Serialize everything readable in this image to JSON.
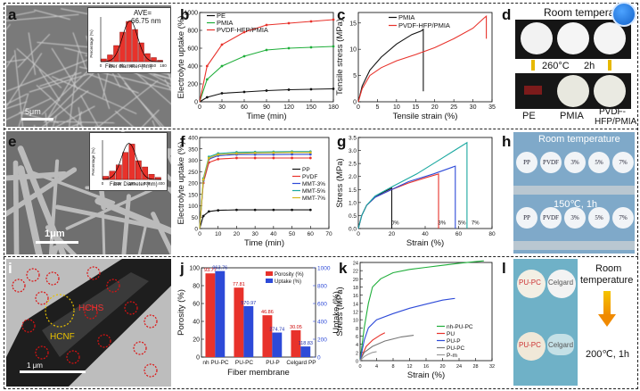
{
  "panels": {
    "a": {
      "label": "a",
      "scale": "5μm",
      "inset": {
        "ave": "AVE=",
        "ave_val": "66.75 nm",
        "ylabel": "Percentage (%)",
        "xlabel": "Fiber diameter (nm)",
        "ticks": [
          "0",
          "30",
          "60",
          "90",
          "120",
          "150",
          "180"
        ]
      }
    },
    "b": {
      "label": "b"
    },
    "c": {
      "label": "c"
    },
    "d": {
      "label": "d",
      "title": "Room temperature",
      "temp": "260°C",
      "time": "2h",
      "labels": [
        "PE",
        "PMIA",
        "PVDF-",
        "HFP/PMIA"
      ]
    },
    "e": {
      "label": "e",
      "scale": "1μm",
      "inset": {
        "ylabel": "Percentage (%)",
        "xlabel": "Fiber Diameter (nm)",
        "ticks": [
          "0",
          "100",
          "200",
          "300",
          "400"
        ]
      }
    },
    "f": {
      "label": "f"
    },
    "g": {
      "label": "g",
      "markers": [
        "0%",
        "3%",
        "5%",
        "7%"
      ]
    },
    "h": {
      "label": "h",
      "title": "Room temperature",
      "temp": "150℃, 1h",
      "discs": [
        "PP",
        "PVDF",
        "3%",
        "5%",
        "7%"
      ]
    },
    "i": {
      "label": "i",
      "scale": "1 μm",
      "tags": [
        "HCHS",
        "HCNF"
      ]
    },
    "j": {
      "label": "j"
    },
    "k": {
      "label": "k"
    },
    "l": {
      "label": "l",
      "discs": [
        "PU-PC",
        "Celgard"
      ],
      "title1": "Room",
      "title2": "temperature",
      "temp": "200℃, 1h"
    }
  },
  "chart_data": [
    {
      "panel": "b",
      "type": "line",
      "xlabel": "Time (min)",
      "ylabel": "Electrolyte uptake (%)",
      "xlim": [
        0,
        180
      ],
      "ylim": [
        0,
        1000
      ],
      "xticks": [
        0,
        30,
        60,
        90,
        120,
        150,
        180
      ],
      "yticks": [
        0,
        200,
        400,
        600,
        800,
        1000
      ],
      "legend": "top-left",
      "series": [
        {
          "name": "PE",
          "color": "#111111",
          "x": [
            0,
            10,
            30,
            60,
            90,
            120,
            150,
            180
          ],
          "y": [
            0,
            50,
            95,
            110,
            125,
            135,
            140,
            145
          ]
        },
        {
          "name": "PMIA",
          "color": "#1fae3a",
          "x": [
            0,
            10,
            30,
            60,
            90,
            120,
            150,
            180
          ],
          "y": [
            0,
            250,
            400,
            510,
            580,
            600,
            610,
            620
          ]
        },
        {
          "name": "PVDF-HFP/PMIA",
          "color": "#e8322b",
          "x": [
            0,
            10,
            30,
            60,
            90,
            120,
            150,
            180
          ],
          "y": [
            0,
            400,
            640,
            780,
            860,
            880,
            900,
            920
          ]
        }
      ]
    },
    {
      "panel": "c",
      "type": "line",
      "xlabel": "Tensile strain (%)",
      "ylabel": "Tensile stress (MPa)",
      "xlim": [
        0,
        35
      ],
      "ylim": [
        0,
        17
      ],
      "xticks": [
        0,
        5,
        10,
        15,
        20,
        25,
        30,
        35
      ],
      "yticks": [
        0,
        5,
        10,
        15
      ],
      "legend": "top-left",
      "series": [
        {
          "name": "PMIA",
          "color": "#111111",
          "x": [
            0,
            1,
            3,
            6,
            10,
            14,
            16.5,
            17,
            17
          ],
          "y": [
            0,
            3,
            6,
            8.5,
            11,
            12.8,
            13.5,
            13.8,
            2
          ]
        },
        {
          "name": "PVDF-HFP/PMIA",
          "color": "#e8322b",
          "x": [
            0,
            1,
            3,
            6,
            10,
            15,
            20,
            25,
            30,
            33,
            33.5,
            33.5
          ],
          "y": [
            0,
            2.5,
            5,
            6.5,
            7.8,
            9,
            10.3,
            12,
            14,
            16,
            16.3,
            12
          ]
        }
      ]
    },
    {
      "panel": "f",
      "type": "line",
      "xlabel": "Time (min)",
      "ylabel": "Electrolyte uptake (%)",
      "xlim": [
        0,
        70
      ],
      "ylim": [
        0,
        400
      ],
      "xticks": [
        0,
        10,
        20,
        30,
        40,
        50,
        60,
        70
      ],
      "yticks": [
        0,
        50,
        100,
        150,
        200,
        250,
        300,
        350,
        400
      ],
      "legend": "right",
      "series": [
        {
          "name": "PP",
          "color": "#111111",
          "x": [
            0,
            2,
            5,
            10,
            20,
            30,
            40,
            50,
            60
          ],
          "y": [
            0,
            55,
            75,
            80,
            82,
            82,
            82,
            82,
            82
          ]
        },
        {
          "name": "PVDF",
          "color": "#e8322b",
          "x": [
            0,
            2,
            5,
            10,
            20,
            30,
            40,
            50,
            60
          ],
          "y": [
            0,
            200,
            290,
            305,
            310,
            310,
            310,
            310,
            310
          ]
        },
        {
          "name": "MMT-3%",
          "color": "#2d4ad8",
          "x": [
            0,
            2,
            5,
            10,
            20,
            30,
            40,
            50,
            60
          ],
          "y": [
            0,
            210,
            305,
            320,
            325,
            325,
            325,
            326,
            326
          ]
        },
        {
          "name": "MMT-5%",
          "color": "#1aa8a0",
          "x": [
            0,
            2,
            5,
            10,
            20,
            30,
            40,
            50,
            60
          ],
          "y": [
            0,
            220,
            315,
            330,
            335,
            336,
            337,
            338,
            338
          ]
        },
        {
          "name": "MMT-7%",
          "color": "#d4b81d",
          "x": [
            0,
            2,
            5,
            10,
            20,
            30,
            40,
            50,
            60
          ],
          "y": [
            0,
            215,
            310,
            325,
            330,
            332,
            333,
            334,
            334
          ]
        }
      ]
    },
    {
      "panel": "g",
      "type": "line",
      "xlabel": "Strain (%)",
      "ylabel": "Stress (MPa)",
      "xlim": [
        0,
        80
      ],
      "ylim": [
        0,
        3.5
      ],
      "xticks": [
        0,
        20,
        40,
        60,
        80
      ],
      "yticks": [
        0.0,
        0.5,
        1.0,
        1.5,
        2.0,
        2.5,
        3.0,
        3.5
      ],
      "series": [
        {
          "name": "0%",
          "color": "#111111",
          "x": [
            0,
            2,
            5,
            10,
            15,
            20,
            20
          ],
          "y": [
            0,
            0.5,
            0.9,
            1.2,
            1.4,
            1.55,
            0
          ]
        },
        {
          "name": "3%",
          "color": "#e8322b",
          "x": [
            0,
            2,
            5,
            10,
            20,
            30,
            40,
            48,
            48
          ],
          "y": [
            0,
            0.5,
            0.9,
            1.2,
            1.5,
            1.75,
            1.95,
            2.1,
            0
          ]
        },
        {
          "name": "5%",
          "color": "#2d4ad8",
          "x": [
            0,
            2,
            5,
            10,
            20,
            30,
            45,
            58,
            58
          ],
          "y": [
            0,
            0.5,
            0.9,
            1.2,
            1.5,
            1.8,
            2.1,
            2.4,
            0
          ]
        },
        {
          "name": "7%",
          "color": "#1aa8a0",
          "x": [
            0,
            2,
            5,
            10,
            20,
            35,
            50,
            65,
            65
          ],
          "y": [
            0,
            0.5,
            0.9,
            1.25,
            1.6,
            2.1,
            2.7,
            3.3,
            0
          ]
        }
      ]
    },
    {
      "panel": "j",
      "type": "bar",
      "xlabel": "Fiber membrane",
      "ylabel": "Porosity (%)",
      "y2label": "Uptake (%)",
      "ylim": [
        0,
        100
      ],
      "y2lim": [
        0,
        1000
      ],
      "yticks": [
        0,
        20,
        40,
        60,
        80,
        100
      ],
      "y2ticks": [
        0,
        200,
        400,
        600,
        800,
        1000
      ],
      "legend": "top-right",
      "categories": [
        "nh PU-PC",
        "PU-PC",
        "PU-P",
        "Celgard PP"
      ],
      "series": [
        {
          "name": "Porosity (%)",
          "color": "#e8322b",
          "values": [
            93.77,
            77.81,
            46.86,
            30.05
          ],
          "labels": [
            "93.77",
            "77.81",
            "46.86",
            "30.05"
          ]
        },
        {
          "name": "Uptake (%)",
          "color": "#2d4ad8",
          "values": [
            963.76,
            570.97,
            274.74,
            118.83
          ],
          "labels": [
            "963.76",
            "570.97",
            "274.74",
            "118.83"
          ]
        }
      ]
    },
    {
      "panel": "k",
      "type": "line",
      "xlabel": "Strain (%)",
      "ylabel": "Stress (MPa)",
      "xlim": [
        0,
        32
      ],
      "ylim": [
        0,
        24
      ],
      "xticks": [
        0,
        4,
        8,
        12,
        16,
        20,
        24,
        28,
        32
      ],
      "yticks": [
        0,
        2,
        4,
        6,
        8,
        10,
        12,
        14,
        16,
        18,
        20,
        22,
        24
      ],
      "legend": "bottom-right",
      "series": [
        {
          "name": "nh-PU-PC",
          "color": "#1fae3a",
          "x": [
            0,
            1,
            2,
            3,
            5,
            8,
            12,
            16,
            20,
            24,
            28,
            30
          ],
          "y": [
            0,
            8,
            14,
            18,
            20,
            21.5,
            22.3,
            22.8,
            23.3,
            23.8,
            24.2,
            24.4
          ]
        },
        {
          "name": "PU",
          "color": "#e8322b",
          "x": [
            0,
            0.8,
            1.5,
            3,
            5,
            6
          ],
          "y": [
            0,
            2,
            3.5,
            5,
            6.3,
            6.8
          ]
        },
        {
          "name": "PU-P",
          "color": "#2d4ad8",
          "x": [
            0,
            1,
            2,
            4,
            8,
            12,
            16,
            20,
            23
          ],
          "y": [
            0,
            5,
            8,
            10,
            11.5,
            12.8,
            13.8,
            14.8,
            15.2
          ]
        },
        {
          "name": "PU-PC",
          "color": "#777777",
          "x": [
            0,
            1,
            3,
            6,
            10,
            13
          ],
          "y": [
            0,
            2,
            3.5,
            4.8,
            5.8,
            6.2
          ]
        },
        {
          "name": "P-m",
          "color": "#999999",
          "x": [
            0,
            1,
            2,
            3,
            4
          ],
          "y": [
            0,
            1,
            1.6,
            2,
            2.2
          ]
        }
      ]
    }
  ]
}
